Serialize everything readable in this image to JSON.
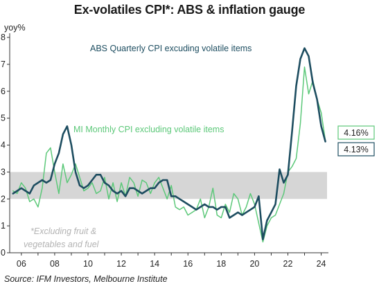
{
  "chart_data": {
    "type": "line",
    "title": "Ex-volatiles CPI*: ABS & inflation gauge",
    "ylabel": "yoy%",
    "source": "Source: IFM  Investors, Melbourne Institute",
    "note_lines": [
      "*Excluding fruit &",
      "vegetables and fuel"
    ],
    "xlim": [
      2005.3,
      2024.6
    ],
    "ylim": [
      0,
      8
    ],
    "yticks": [
      "0",
      "1",
      "2",
      "3",
      "4",
      "5",
      "6",
      "7",
      "8"
    ],
    "xtick_labels": [
      "06",
      "08",
      "10",
      "12",
      "14",
      "16",
      "18",
      "20",
      "22",
      "24"
    ],
    "xtick_values": [
      2006,
      2008,
      2010,
      2012,
      2014,
      2016,
      2018,
      2020,
      2022,
      2024
    ],
    "target_band": [
      2,
      3
    ],
    "series": [
      {
        "name": "ABS Quarterly CPI excuding volatile items",
        "color": "#1d4d60",
        "end_label": "4.13%",
        "x": [
          2005.5,
          2005.75,
          2006.0,
          2006.25,
          2006.5,
          2006.75,
          2007.0,
          2007.25,
          2007.5,
          2007.75,
          2008.0,
          2008.25,
          2008.5,
          2008.75,
          2009.0,
          2009.25,
          2009.5,
          2009.75,
          2010.0,
          2010.25,
          2010.5,
          2010.75,
          2011.0,
          2011.25,
          2011.5,
          2011.75,
          2012.0,
          2012.25,
          2012.5,
          2012.75,
          2013.0,
          2013.25,
          2013.5,
          2013.75,
          2014.0,
          2014.25,
          2014.5,
          2014.75,
          2015.0,
          2015.25,
          2015.5,
          2015.75,
          2016.0,
          2016.25,
          2016.5,
          2016.75,
          2017.0,
          2017.25,
          2017.5,
          2017.75,
          2018.0,
          2018.25,
          2018.5,
          2018.75,
          2019.0,
          2019.25,
          2019.5,
          2019.75,
          2020.0,
          2020.25,
          2020.5,
          2020.75,
          2021.0,
          2021.25,
          2021.5,
          2021.75,
          2022.0,
          2022.25,
          2022.5,
          2022.75,
          2023.0,
          2023.25,
          2023.5,
          2023.75,
          2024.0,
          2024.25
        ],
        "values": [
          2.2,
          2.3,
          2.4,
          2.3,
          2.2,
          2.5,
          2.6,
          2.7,
          2.6,
          2.7,
          3.3,
          3.7,
          4.4,
          4.7,
          4.0,
          3.0,
          2.5,
          2.4,
          2.5,
          2.7,
          2.9,
          2.9,
          2.6,
          2.5,
          2.3,
          2.2,
          2.3,
          2.1,
          2.4,
          2.4,
          2.3,
          2.2,
          2.3,
          2.4,
          2.4,
          2.6,
          2.7,
          2.7,
          2.1,
          2.1,
          2.0,
          1.9,
          1.8,
          1.7,
          1.6,
          1.7,
          1.8,
          1.7,
          1.7,
          1.6,
          1.7,
          1.7,
          1.3,
          1.4,
          1.5,
          1.4,
          1.5,
          1.6,
          1.7,
          2.1,
          0.5,
          1.2,
          1.5,
          1.8,
          3.1,
          2.6,
          2.9,
          4.5,
          6.2,
          7.2,
          7.6,
          7.3,
          6.3,
          5.7,
          4.7,
          4.13
        ]
      },
      {
        "name": "MI Monthly CPI excluding volatile items",
        "color": "#5cc879",
        "end_label": "4.16%",
        "x": [
          2005.5,
          2005.75,
          2006.0,
          2006.25,
          2006.5,
          2006.75,
          2007.0,
          2007.25,
          2007.5,
          2007.75,
          2008.0,
          2008.25,
          2008.5,
          2008.75,
          2009.0,
          2009.25,
          2009.5,
          2009.75,
          2010.0,
          2010.25,
          2010.5,
          2010.75,
          2011.0,
          2011.25,
          2011.5,
          2011.75,
          2012.0,
          2012.25,
          2012.5,
          2012.75,
          2013.0,
          2013.25,
          2013.5,
          2013.75,
          2014.0,
          2014.25,
          2014.5,
          2014.75,
          2015.0,
          2015.25,
          2015.5,
          2015.75,
          2016.0,
          2016.25,
          2016.5,
          2016.75,
          2017.0,
          2017.25,
          2017.5,
          2017.75,
          2018.0,
          2018.25,
          2018.5,
          2018.75,
          2019.0,
          2019.25,
          2019.5,
          2019.75,
          2020.0,
          2020.25,
          2020.5,
          2020.75,
          2021.0,
          2021.25,
          2021.5,
          2021.75,
          2022.0,
          2022.25,
          2022.5,
          2022.75,
          2023.0,
          2023.25,
          2023.5,
          2023.75,
          2024.0,
          2024.25
        ],
        "values": [
          2.3,
          2.2,
          2.6,
          2.4,
          1.9,
          2.0,
          1.7,
          2.4,
          3.7,
          3.9,
          3.0,
          2.2,
          3.3,
          2.6,
          2.9,
          3.3,
          2.8,
          2.3,
          2.4,
          2.6,
          2.2,
          2.3,
          2.8,
          2.0,
          2.6,
          1.9,
          2.6,
          2.1,
          2.8,
          2.6,
          2.1,
          2.7,
          2.6,
          2.2,
          2.6,
          2.8,
          2.4,
          2.0,
          2.5,
          1.7,
          1.6,
          1.7,
          1.4,
          1.5,
          1.6,
          2.0,
          1.3,
          1.7,
          2.4,
          1.4,
          1.3,
          1.8,
          1.5,
          2.2,
          2.0,
          1.4,
          1.7,
          2.2,
          1.8,
          1.1,
          0.4,
          1.0,
          1.3,
          1.4,
          1.8,
          2.2,
          3.0,
          3.2,
          3.5,
          4.8,
          6.9,
          5.9,
          6.4,
          5.7,
          5.2,
          4.16
        ]
      }
    ],
    "annotations": {
      "abs_label": "ABS Quarterly CPI excuding volatile items",
      "mi_label": "MI Monthly CPI excluding volatile items"
    }
  }
}
